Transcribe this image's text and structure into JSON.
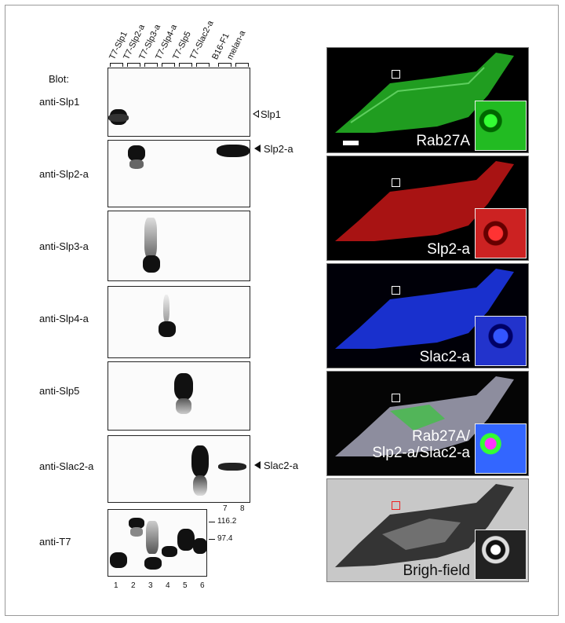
{
  "blot_label": "Blot:",
  "lanes": [
    "T7-Slp1",
    "T7-Slp2-a",
    "T7-Slp3-a",
    "T7-Slp4-a",
    "T7-Slp5",
    "T7-Slac2-a",
    "B16-F1",
    "melan-a"
  ],
  "lane_numbers": [
    "1",
    "2",
    "3",
    "4",
    "5",
    "6",
    "7",
    "8"
  ],
  "blots": [
    {
      "antibody": "anti-Slp1",
      "band_label": "Slp1",
      "marker": "open"
    },
    {
      "antibody": "anti-Slp2-a",
      "band_label": "Slp2-a",
      "marker": "filled"
    },
    {
      "antibody": "anti-Slp3-a",
      "band_label": "",
      "marker": ""
    },
    {
      "antibody": "anti-Slp4-a",
      "band_label": "",
      "marker": ""
    },
    {
      "antibody": "anti-Slp5",
      "band_label": "",
      "marker": ""
    },
    {
      "antibody": "anti-Slac2-a",
      "band_label": "Slac2-a",
      "marker": "filled"
    },
    {
      "antibody": "anti-T7",
      "band_label": "",
      "marker": ""
    }
  ],
  "mw_markers": [
    "116.2",
    "97.4"
  ],
  "fluorescence_panels": [
    {
      "label": "Rab27A",
      "color": "#2bd12b",
      "bg": "#000000"
    },
    {
      "label": "Slp2-a",
      "color": "#e01a1a",
      "bg": "#000000"
    },
    {
      "label": "Slac2-a",
      "color": "#1f3cff",
      "bg": "#000008"
    },
    {
      "label": "Rab27A/\nSlp2-a/Slac2-a",
      "color": "#d9d9e8",
      "bg": "#050505"
    },
    {
      "label": "Brigh-field",
      "color": "#1a1a1a",
      "bg": "#c8c8c8"
    }
  ]
}
